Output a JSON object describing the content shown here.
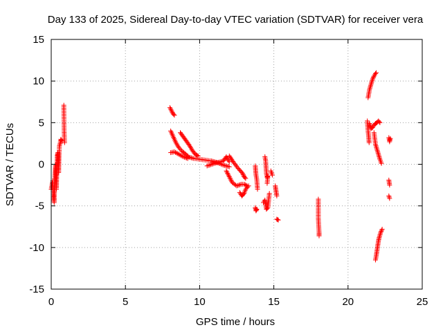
{
  "chart_data": {
    "type": "scatter",
    "title": "Day 133 of 2025, Sidereal Day-to-day VTEC variation (SDTVAR) for receiver vera",
    "xlabel": "GPS time / hours",
    "ylabel": "SDTVAR / TECUs",
    "xlim": [
      0,
      25
    ],
    "ylim": [
      -15,
      15
    ],
    "xticks": [
      0,
      5,
      10,
      15,
      20,
      25
    ],
    "yticks": [
      -15,
      -10,
      -5,
      0,
      5,
      10,
      15
    ],
    "grid": true,
    "marker": "+",
    "color": "#ff0000",
    "series": [
      {
        "name": "SDTVAR",
        "segments": [
          [
            [
              0.0,
              -3.0
            ],
            [
              0.05,
              -2.5
            ],
            [
              0.1,
              -2.0
            ],
            [
              0.15,
              -3.8
            ],
            [
              0.2,
              -4.6
            ],
            [
              0.25,
              -1.3
            ],
            [
              0.3,
              0.0
            ],
            [
              0.35,
              -3.0
            ],
            [
              0.4,
              1.0
            ],
            [
              0.45,
              1.4
            ],
            [
              0.5,
              -1.0
            ],
            [
              0.55,
              2.2
            ],
            [
              0.6,
              2.5
            ],
            [
              0.65,
              3.0
            ],
            [
              0.7,
              2.8
            ]
          ],
          [
            [
              0.85,
              7.1
            ],
            [
              0.87,
              4.0
            ],
            [
              0.9,
              2.6
            ]
          ],
          [
            [
              8.0,
              6.8
            ],
            [
              8.2,
              6.1
            ],
            [
              8.3,
              5.9
            ]
          ],
          [
            [
              8.05,
              4.0
            ],
            [
              8.2,
              3.4
            ],
            [
              8.4,
              2.6
            ],
            [
              8.6,
              2.0
            ],
            [
              8.8,
              1.6
            ],
            [
              9.0,
              1.3
            ],
            [
              9.2,
              1.0
            ]
          ],
          [
            [
              8.05,
              1.4
            ],
            [
              8.3,
              1.5
            ],
            [
              8.6,
              1.2
            ],
            [
              8.9,
              0.9
            ],
            [
              9.2,
              0.7
            ]
          ],
          [
            [
              8.7,
              3.8
            ],
            [
              8.9,
              3.3
            ],
            [
              9.1,
              2.8
            ],
            [
              9.3,
              2.3
            ],
            [
              9.5,
              1.7
            ],
            [
              9.7,
              1.2
            ],
            [
              9.9,
              1.0
            ]
          ],
          [
            [
              9.2,
              0.9
            ],
            [
              9.6,
              0.7
            ],
            [
              10.0,
              0.6
            ],
            [
              10.4,
              0.5
            ],
            [
              10.8,
              0.4
            ],
            [
              11.2,
              0.2
            ],
            [
              11.6,
              -0.1
            ],
            [
              12.0,
              -0.3
            ]
          ],
          [
            [
              10.5,
              -0.2
            ],
            [
              11.0,
              0.1
            ],
            [
              11.6,
              0.4
            ],
            [
              11.8,
              0.9
            ],
            [
              12.0,
              0.3
            ]
          ],
          [
            [
              11.8,
              -0.8
            ],
            [
              12.0,
              -1.5
            ],
            [
              12.2,
              -2.2
            ],
            [
              12.5,
              -2.6
            ],
            [
              12.8,
              -2.4
            ],
            [
              13.0,
              -2.4
            ],
            [
              13.2,
              -2.6
            ]
          ],
          [
            [
              12.0,
              1.0
            ],
            [
              12.3,
              0.2
            ],
            [
              12.6,
              -0.5
            ],
            [
              12.9,
              -1.1
            ],
            [
              13.0,
              -1.5
            ],
            [
              13.1,
              -1.7
            ]
          ],
          [
            [
              12.7,
              -3.4
            ],
            [
              12.85,
              -3.8
            ],
            [
              13.0,
              -3.5
            ],
            [
              13.1,
              -3.0
            ],
            [
              13.3,
              -2.6
            ]
          ],
          [
            [
              13.75,
              -0.2
            ],
            [
              13.8,
              -1.3
            ],
            [
              13.85,
              -1.8
            ],
            [
              13.9,
              -3.0
            ]
          ],
          [
            [
              13.75,
              -5.2
            ],
            [
              13.8,
              -5.6
            ],
            [
              13.85,
              -5.4
            ]
          ],
          [
            [
              14.4,
              0.9
            ],
            [
              14.45,
              0.4
            ],
            [
              14.5,
              -1.1
            ],
            [
              14.55,
              -1.6
            ],
            [
              14.6,
              -1.4
            ],
            [
              14.55,
              -2.3
            ]
          ],
          [
            [
              14.3,
              -4.6
            ],
            [
              14.4,
              -4.3
            ],
            [
              14.5,
              -5.4
            ],
            [
              14.6,
              -5.2
            ],
            [
              14.7,
              -3.5
            ]
          ],
          [
            [
              14.8,
              -0.8
            ],
            [
              14.9,
              -1.3
            ]
          ],
          [
            [
              15.1,
              -2.6
            ],
            [
              15.15,
              -3.2
            ],
            [
              15.2,
              -3.8
            ]
          ],
          [
            [
              15.2,
              -6.6
            ],
            [
              15.3,
              -6.7
            ]
          ],
          [
            [
              18.0,
              -4.2
            ],
            [
              18.0,
              -6.5
            ],
            [
              18.05,
              -8.2
            ],
            [
              18.05,
              -8.6
            ]
          ],
          [
            [
              21.35,
              8.0
            ],
            [
              21.45,
              9.0
            ],
            [
              21.55,
              9.6
            ],
            [
              21.65,
              10.2
            ],
            [
              21.75,
              10.6
            ],
            [
              21.85,
              10.9
            ],
            [
              21.9,
              11.0
            ]
          ],
          [
            [
              21.3,
              5.2
            ],
            [
              21.35,
              4.0
            ],
            [
              21.4,
              3.2
            ],
            [
              21.42,
              2.6
            ]
          ],
          [
            [
              21.45,
              4.9
            ],
            [
              21.55,
              4.3
            ],
            [
              21.65,
              4.4
            ],
            [
              21.75,
              4.7
            ],
            [
              21.85,
              4.9
            ],
            [
              21.95,
              5.0
            ],
            [
              22.05,
              5.2
            ],
            [
              22.15,
              5.0
            ]
          ],
          [
            [
              21.75,
              3.8
            ],
            [
              21.85,
              2.4
            ],
            [
              21.95,
              1.8
            ],
            [
              22.05,
              1.2
            ],
            [
              22.15,
              0.6
            ],
            [
              22.25,
              0.1
            ]
          ],
          [
            [
              21.85,
              -11.5
            ],
            [
              21.9,
              -11.0
            ],
            [
              21.95,
              -10.4
            ],
            [
              22.0,
              -9.8
            ],
            [
              22.05,
              -9.2
            ],
            [
              22.1,
              -8.8
            ],
            [
              22.2,
              -8.2
            ],
            [
              22.3,
              -7.8
            ]
          ],
          [
            [
              22.75,
              -1.9
            ],
            [
              22.8,
              -2.5
            ]
          ],
          [
            [
              22.75,
              -3.8
            ],
            [
              22.8,
              -4.1
            ]
          ],
          [
            [
              22.75,
              3.2
            ],
            [
              22.8,
              2.7
            ],
            [
              22.85,
              3.1
            ]
          ]
        ]
      }
    ]
  }
}
